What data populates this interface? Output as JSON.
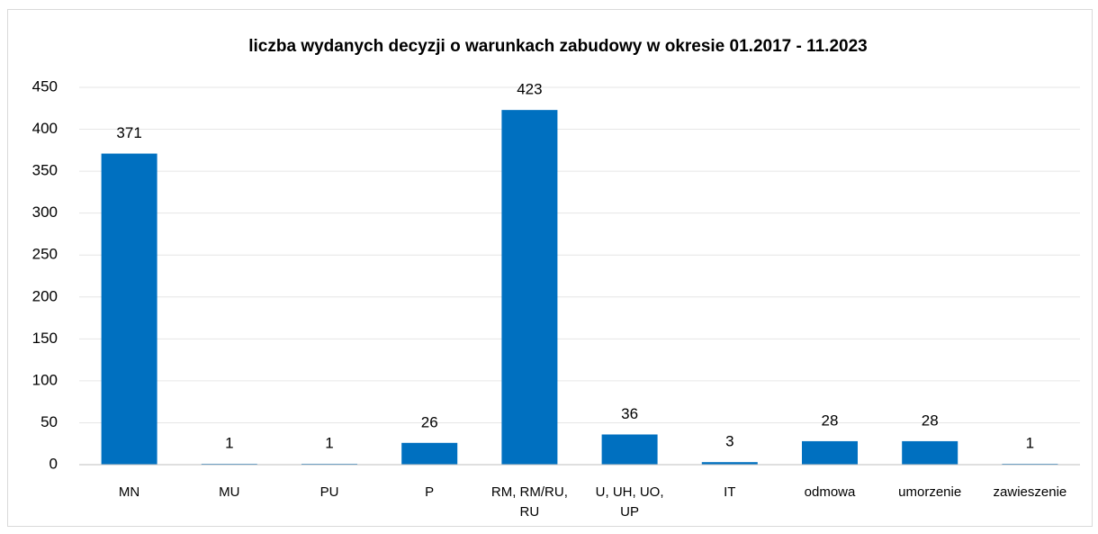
{
  "chart_data": {
    "type": "bar",
    "title": "liczba wydanych decyzji o warunkach zabudowy w okresie 01.2017 - 11.2023",
    "categories": [
      "MN",
      "MU",
      "PU",
      "P",
      "RM, RM/RU, RU",
      "U, UH, UO, UP",
      "IT",
      "odmowa",
      "umorzenie",
      "zawieszenie"
    ],
    "values": [
      371,
      1,
      1,
      26,
      423,
      36,
      3,
      28,
      28,
      1
    ],
    "color": "#0070c0",
    "ylim": [
      0,
      450
    ],
    "yticks": [
      0,
      50,
      100,
      150,
      200,
      250,
      300,
      350,
      400,
      450
    ],
    "grid": true
  }
}
